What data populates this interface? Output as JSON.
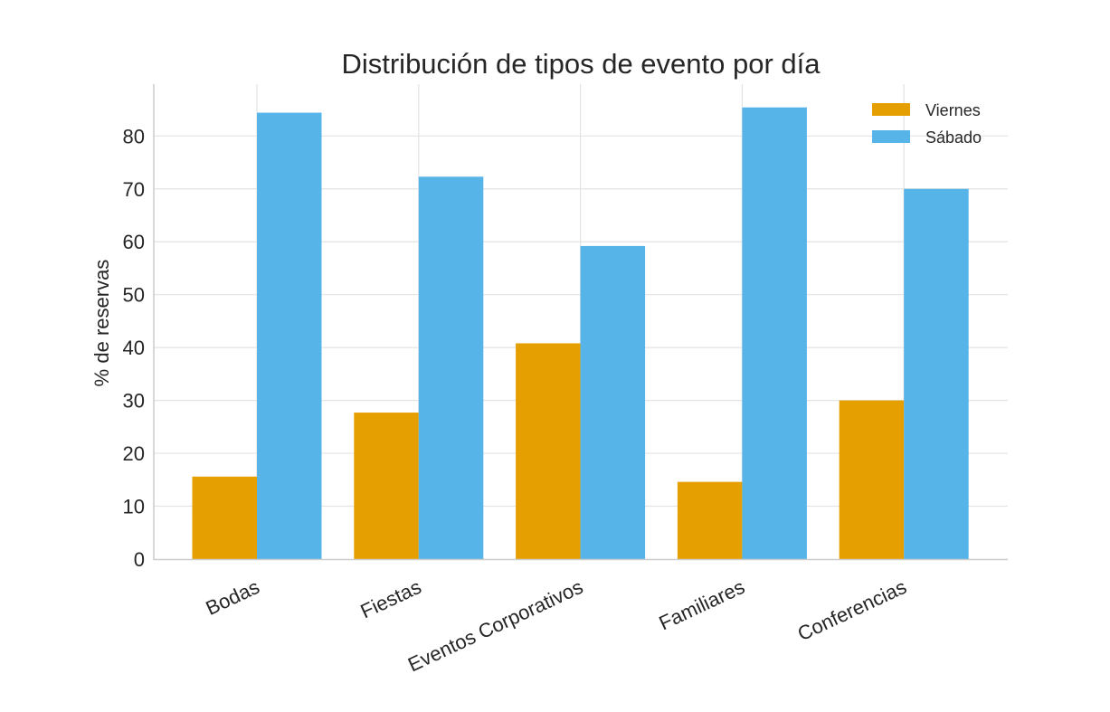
{
  "chart_data": {
    "type": "bar",
    "title": "Distribución de tipos de evento por día",
    "xlabel": "",
    "ylabel": "% de reservas",
    "categories": [
      "Bodas",
      "Fiestas",
      "Eventos Corporativos",
      "Familiares",
      "Conferencias"
    ],
    "series": [
      {
        "name": "Viernes",
        "color": "#E69F00",
        "values": [
          15.6,
          27.7,
          40.8,
          14.6,
          30.0
        ]
      },
      {
        "name": "Sábado",
        "color": "#56B4E9",
        "values": [
          84.4,
          72.3,
          59.2,
          85.4,
          70.0
        ]
      }
    ],
    "ylim": [
      0,
      89.8
    ],
    "yticks": [
      0,
      10,
      20,
      30,
      40,
      50,
      60,
      70,
      80
    ],
    "ytick_labels": [
      "0",
      "10",
      "20",
      "30",
      "40",
      "50",
      "60",
      "70",
      "80"
    ],
    "grid": true,
    "legend_position": "top-right"
  }
}
